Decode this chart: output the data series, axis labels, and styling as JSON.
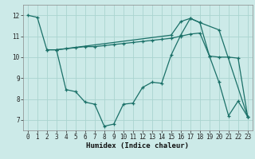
{
  "xlabel": "Humidex (Indice chaleur)",
  "bg_color": "#cceae8",
  "grid_color": "#aad4d0",
  "line_color": "#1a7068",
  "xlim": [
    -0.5,
    23.5
  ],
  "ylim": [
    6.5,
    12.5
  ],
  "yticks": [
    7,
    8,
    9,
    10,
    11,
    12
  ],
  "xticks": [
    0,
    1,
    2,
    3,
    4,
    5,
    6,
    7,
    8,
    9,
    10,
    11,
    12,
    13,
    14,
    15,
    16,
    17,
    18,
    19,
    20,
    21,
    22,
    23
  ],
  "line1_x": [
    0,
    1,
    2,
    3,
    15,
    16,
    17,
    18,
    20,
    23
  ],
  "line1_y": [
    12.0,
    11.9,
    10.35,
    10.35,
    11.05,
    11.7,
    11.85,
    11.65,
    11.3,
    7.15
  ],
  "line2_x": [
    3,
    4,
    5,
    6,
    7,
    8,
    9,
    10,
    11,
    12,
    13,
    14,
    15,
    16,
    17,
    18,
    19,
    20,
    21,
    22,
    23
  ],
  "line2_y": [
    10.35,
    8.45,
    8.35,
    7.85,
    7.75,
    6.7,
    6.8,
    7.75,
    7.8,
    8.55,
    8.8,
    8.75,
    10.1,
    11.05,
    11.85,
    11.65,
    10.05,
    8.8,
    7.2,
    7.9,
    7.15
  ],
  "line3_x": [
    2,
    3,
    4,
    5,
    6,
    7,
    8,
    9,
    10,
    11,
    12,
    13,
    14,
    15,
    16,
    17,
    18,
    19,
    20,
    21,
    22,
    23
  ],
  "line3_y": [
    10.35,
    10.35,
    10.4,
    10.45,
    10.5,
    10.5,
    10.55,
    10.6,
    10.65,
    10.7,
    10.75,
    10.8,
    10.85,
    10.9,
    11.0,
    11.1,
    11.15,
    10.05,
    10.0,
    10.0,
    9.95,
    7.15
  ],
  "tick_fontsize": 5.5,
  "xlabel_fontsize": 6.5
}
